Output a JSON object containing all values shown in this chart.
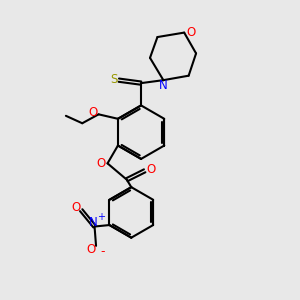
{
  "bg_color": "#e8e8e8",
  "bond_color": "#000000",
  "S_color": "#999900",
  "N_color": "#0000ff",
  "O_color": "#ff0000",
  "lw": 1.5,
  "xlim": [
    0,
    10
  ],
  "ylim": [
    0,
    10
  ]
}
